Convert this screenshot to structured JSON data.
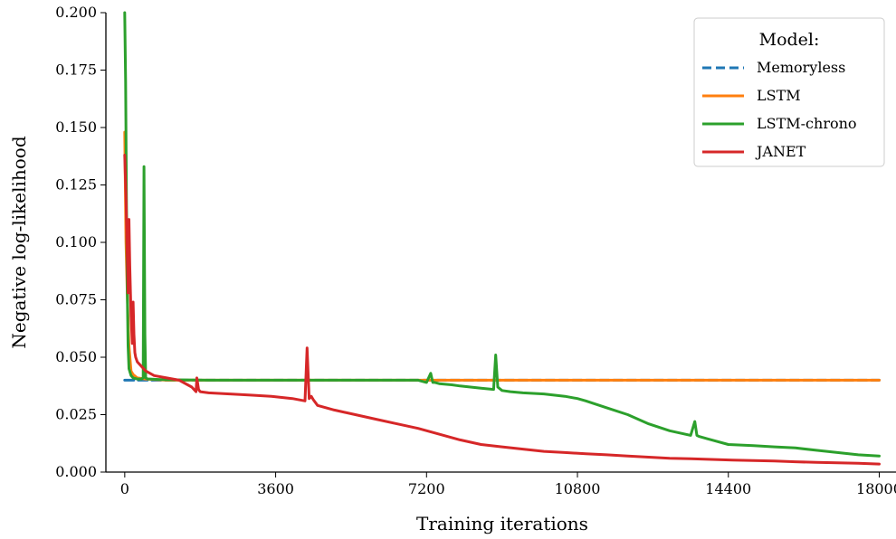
{
  "chart_data": {
    "type": "line",
    "title": "",
    "xlabel": "Training iterations",
    "ylabel": "Negative log-likelihood",
    "xlim": [
      -450,
      18400
    ],
    "ylim": [
      0.0,
      0.2
    ],
    "xticks": [
      0,
      3600,
      7200,
      10800,
      14400,
      18000
    ],
    "xtick_labels": [
      "0",
      "3600",
      "7200",
      "10800",
      "14400",
      "18000"
    ],
    "yticks": [
      0.0,
      0.025,
      0.05,
      0.075,
      0.1,
      0.125,
      0.15,
      0.175,
      0.2
    ],
    "ytick_labels": [
      "0.000",
      "0.025",
      "0.050",
      "0.075",
      "0.100",
      "0.125",
      "0.150",
      "0.175",
      "0.200"
    ],
    "grid": false,
    "legend": {
      "title": "Model:",
      "placement": "top-right"
    },
    "series": [
      {
        "name": "Memoryless",
        "color": "#1f77b4",
        "dash": "dashed",
        "x": [
          0,
          18000
        ],
        "y": [
          0.04,
          0.04
        ]
      },
      {
        "name": "LSTM",
        "color": "#ff7f0e",
        "dash": "solid",
        "x": [
          0,
          30,
          60,
          100,
          150,
          200,
          300,
          500,
          800,
          1000,
          3000,
          6000,
          9000,
          12000,
          15000,
          18000
        ],
        "y": [
          0.148,
          0.1,
          0.078,
          0.055,
          0.044,
          0.0425,
          0.041,
          0.0405,
          0.0402,
          0.04,
          0.04,
          0.04,
          0.04,
          0.04,
          0.04,
          0.04
        ]
      },
      {
        "name": "LSTM-chrono",
        "color": "#2ca02c",
        "dash": "solid",
        "x": [
          0,
          20,
          40,
          60,
          80,
          100,
          150,
          200,
          300,
          400,
          440,
          460,
          480,
          500,
          550,
          600,
          800,
          1000,
          2000,
          3000,
          4000,
          5000,
          6000,
          6500,
          7000,
          7200,
          7300,
          7350,
          7400,
          7500,
          7800,
          8000,
          8500,
          8800,
          8850,
          8900,
          9000,
          9200,
          9500,
          10000,
          10500,
          10800,
          11000,
          11500,
          12000,
          12500,
          13000,
          13500,
          13600,
          13650,
          13700,
          13900,
          14000,
          14400,
          15000,
          15500,
          16000,
          16500,
          17000,
          17500,
          18000
        ],
        "y": [
          0.2,
          0.17,
          0.12,
          0.08,
          0.055,
          0.045,
          0.042,
          0.041,
          0.0405,
          0.0405,
          0.041,
          0.133,
          0.06,
          0.041,
          0.0405,
          0.0405,
          0.0403,
          0.0402,
          0.04,
          0.04,
          0.04,
          0.04,
          0.04,
          0.04,
          0.04,
          0.039,
          0.043,
          0.039,
          0.039,
          0.0385,
          0.038,
          0.0375,
          0.0365,
          0.036,
          0.051,
          0.037,
          0.0355,
          0.035,
          0.0345,
          0.034,
          0.033,
          0.032,
          0.031,
          0.028,
          0.025,
          0.021,
          0.018,
          0.016,
          0.022,
          0.016,
          0.0155,
          0.0145,
          0.014,
          0.012,
          0.0115,
          0.011,
          0.0105,
          0.0095,
          0.0085,
          0.0075,
          0.007
        ]
      },
      {
        "name": "JANET",
        "color": "#d62728",
        "dash": "solid",
        "x": [
          0,
          30,
          60,
          80,
          100,
          120,
          150,
          180,
          200,
          220,
          240,
          260,
          300,
          400,
          500,
          700,
          1000,
          1300,
          1600,
          1700,
          1720,
          1760,
          1800,
          2000,
          2500,
          3000,
          3500,
          4000,
          4300,
          4350,
          4400,
          4450,
          4500,
          4600,
          5000,
          5500,
          6000,
          6500,
          7000,
          7500,
          8000,
          8500,
          9000,
          9500,
          10000,
          10500,
          11000,
          11500,
          12000,
          12500,
          13000,
          13500,
          14000,
          14500,
          15000,
          15500,
          16000,
          16500,
          17000,
          17500,
          18000
        ],
        "y": [
          0.138,
          0.12,
          0.095,
          0.078,
          0.11,
          0.09,
          0.068,
          0.056,
          0.074,
          0.06,
          0.052,
          0.05,
          0.048,
          0.046,
          0.044,
          0.042,
          0.041,
          0.04,
          0.037,
          0.035,
          0.041,
          0.036,
          0.035,
          0.0345,
          0.034,
          0.0335,
          0.033,
          0.032,
          0.031,
          0.054,
          0.032,
          0.033,
          0.0315,
          0.029,
          0.027,
          0.025,
          0.023,
          0.021,
          0.019,
          0.0165,
          0.014,
          0.012,
          0.011,
          0.01,
          0.009,
          0.0085,
          0.008,
          0.0075,
          0.007,
          0.0065,
          0.006,
          0.0058,
          0.0055,
          0.0052,
          0.005,
          0.0048,
          0.0045,
          0.0042,
          0.004,
          0.0038,
          0.0035
        ]
      }
    ]
  }
}
